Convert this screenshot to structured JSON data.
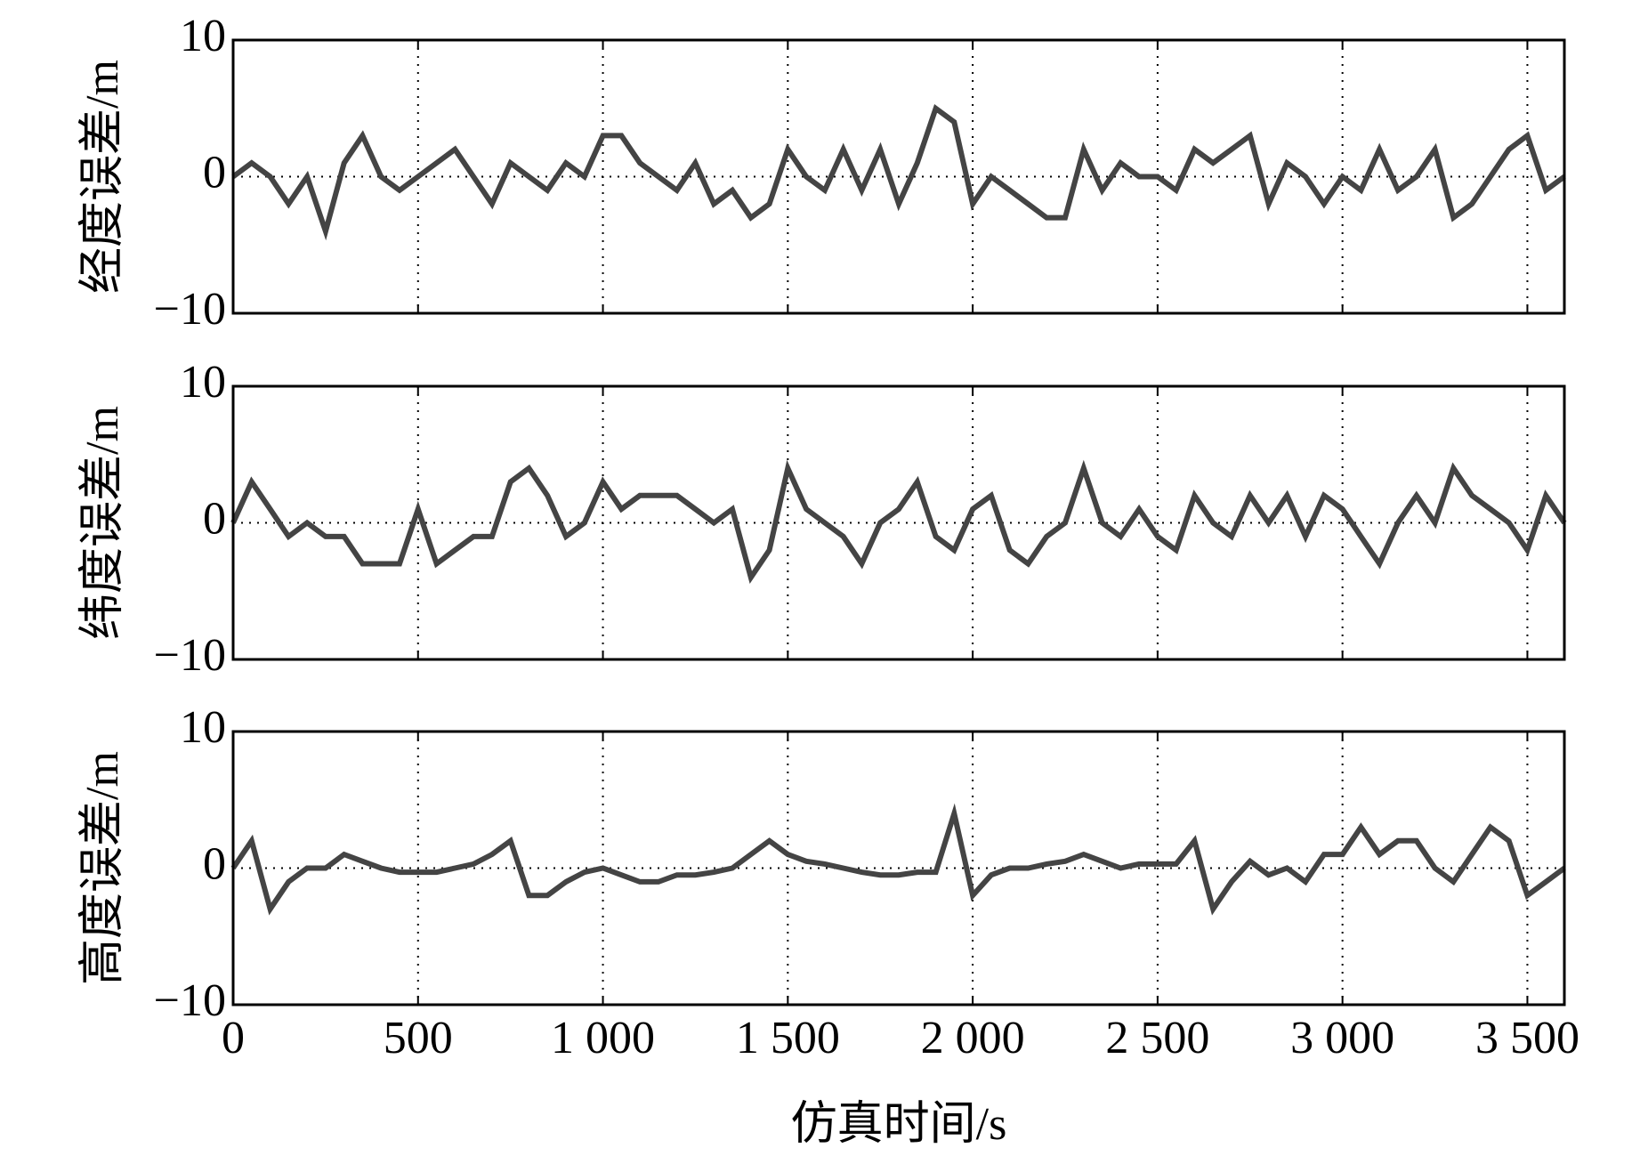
{
  "chart_data": {
    "type": "line",
    "x": [
      0,
      50,
      100,
      150,
      200,
      250,
      300,
      350,
      400,
      450,
      500,
      550,
      600,
      650,
      700,
      750,
      800,
      850,
      900,
      950,
      1000,
      1050,
      1100,
      1150,
      1200,
      1250,
      1300,
      1350,
      1400,
      1450,
      1500,
      1550,
      1600,
      1650,
      1700,
      1750,
      1800,
      1850,
      1900,
      1950,
      2000,
      2050,
      2100,
      2150,
      2200,
      2250,
      2300,
      2350,
      2400,
      2450,
      2500,
      2550,
      2600,
      2650,
      2700,
      2750,
      2800,
      2850,
      2900,
      2950,
      3000,
      3050,
      3100,
      3150,
      3200,
      3250,
      3300,
      3350,
      3400,
      3450,
      3500,
      3550,
      3600
    ],
    "xlim": [
      0,
      3600
    ],
    "xticks": [
      0,
      500,
      {
        "value": 1000,
        "label": "1 000"
      },
      {
        "value": 1500,
        "label": "1 500"
      },
      {
        "value": 2000,
        "label": "2 000"
      },
      {
        "value": 2500,
        "label": "2 500"
      },
      {
        "value": 3000,
        "label": "3 000"
      },
      {
        "value": 3500,
        "label": "3 500"
      }
    ],
    "xlabel": "仿真时间/s",
    "grid": true,
    "panels": [
      {
        "ylabel": "经度误差/m",
        "color": "#444444",
        "ylim": [
          -10,
          10
        ],
        "yticks": [
          {
            "value": -10,
            "label": "−10"
          },
          0,
          10
        ],
        "values": [
          0,
          1,
          0,
          -2,
          0,
          -4,
          1,
          3,
          0,
          -1,
          0,
          1,
          2,
          0,
          -2,
          1,
          0,
          -1,
          1,
          0,
          3,
          3,
          1,
          0,
          -1,
          1,
          -2,
          -1,
          -3,
          -2,
          2,
          0,
          -1,
          2,
          -1,
          2,
          -2,
          1,
          5,
          4,
          -2,
          0,
          -1,
          -2,
          -3,
          -3,
          2,
          -1,
          1,
          0,
          0,
          -1,
          2,
          1,
          2,
          3,
          -2,
          1,
          0,
          -2,
          0,
          -1,
          2,
          -1,
          0,
          2,
          -3,
          -2,
          0,
          2,
          3,
          -1,
          0
        ]
      },
      {
        "ylabel": "纬度误差/m",
        "color": "#444444",
        "ylim": [
          -10,
          10
        ],
        "yticks": [
          {
            "value": -10,
            "label": "−10"
          },
          0,
          10
        ],
        "values": [
          0,
          3,
          1,
          -1,
          0,
          -1,
          -1,
          -3,
          -3,
          -3,
          1,
          -3,
          -2,
          -1,
          -1,
          3,
          4,
          2,
          -1,
          0,
          3,
          1,
          2,
          2,
          2,
          1,
          0,
          1,
          -4,
          -2,
          4,
          1,
          0,
          -1,
          -3,
          0,
          1,
          3,
          -1,
          -2,
          1,
          2,
          -2,
          -3,
          -1,
          0,
          4,
          0,
          -1,
          1,
          -1,
          -2,
          2,
          0,
          -1,
          2,
          0,
          2,
          -1,
          2,
          1,
          -1,
          -3,
          0,
          2,
          0,
          4,
          2,
          1,
          0,
          -2,
          2,
          0
        ]
      },
      {
        "ylabel": "高度误差/m",
        "color": "#444444",
        "ylim": [
          -10,
          10
        ],
        "yticks": [
          {
            "value": -10,
            "label": "−10"
          },
          0,
          10
        ],
        "values": [
          0,
          2,
          -3,
          -1,
          0,
          0,
          1,
          0.5,
          0,
          -0.3,
          -0.3,
          -0.3,
          0,
          0.3,
          1,
          2,
          -2,
          -2,
          -1,
          -0.3,
          0,
          -0.5,
          -1,
          -1,
          -0.5,
          -0.5,
          -0.3,
          0,
          1,
          2,
          1,
          0.5,
          0.3,
          0,
          -0.3,
          -0.5,
          -0.5,
          -0.3,
          -0.3,
          4,
          -2,
          -0.5,
          0,
          0,
          0.3,
          0.5,
          1,
          0.5,
          0,
          0.3,
          0.3,
          0.3,
          2,
          -3,
          -1,
          0.5,
          -0.5,
          0,
          -1,
          1,
          1,
          3,
          1,
          2,
          2,
          0,
          -1,
          1,
          3,
          2,
          -2,
          -1,
          0
        ]
      }
    ]
  }
}
